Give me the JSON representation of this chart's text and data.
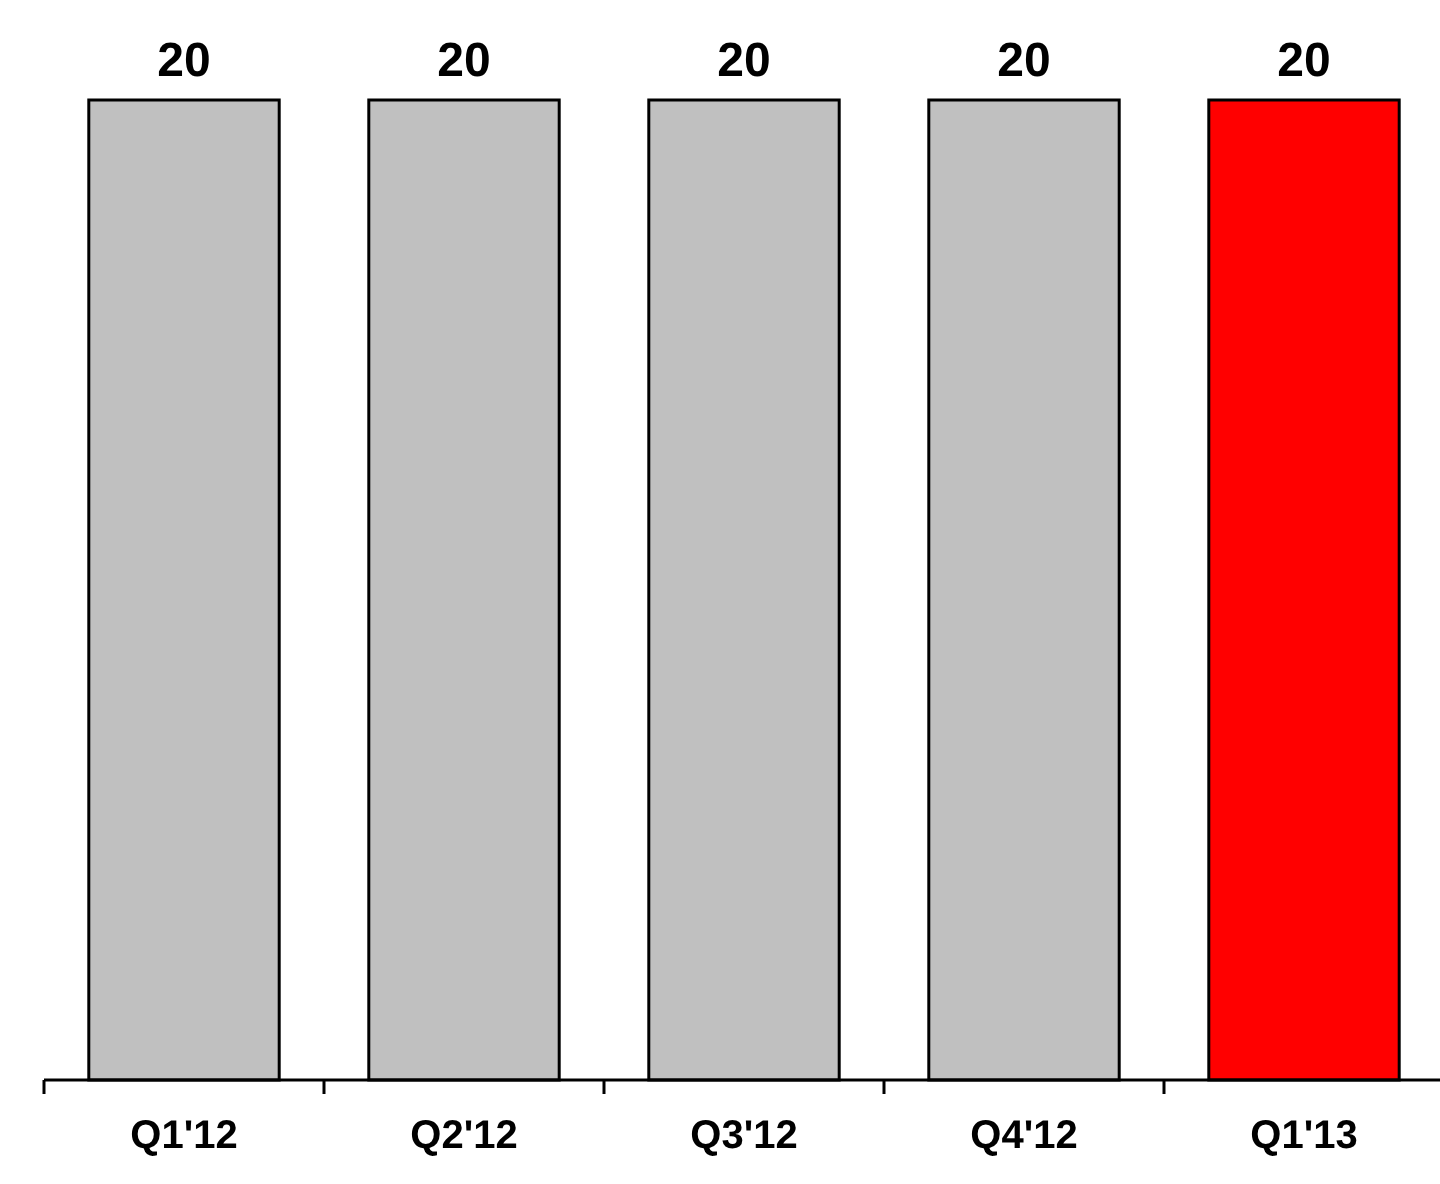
{
  "chart_data": {
    "type": "bar",
    "categories": [
      "Q1'12",
      "Q2'12",
      "Q3'12",
      "Q4'12",
      "Q1'13"
    ],
    "values": [
      20,
      20,
      20,
      20,
      20
    ],
    "colors": [
      "#c0c0c0",
      "#c0c0c0",
      "#c0c0c0",
      "#c0c0c0",
      "#ff0000"
    ],
    "data_labels": true
  }
}
